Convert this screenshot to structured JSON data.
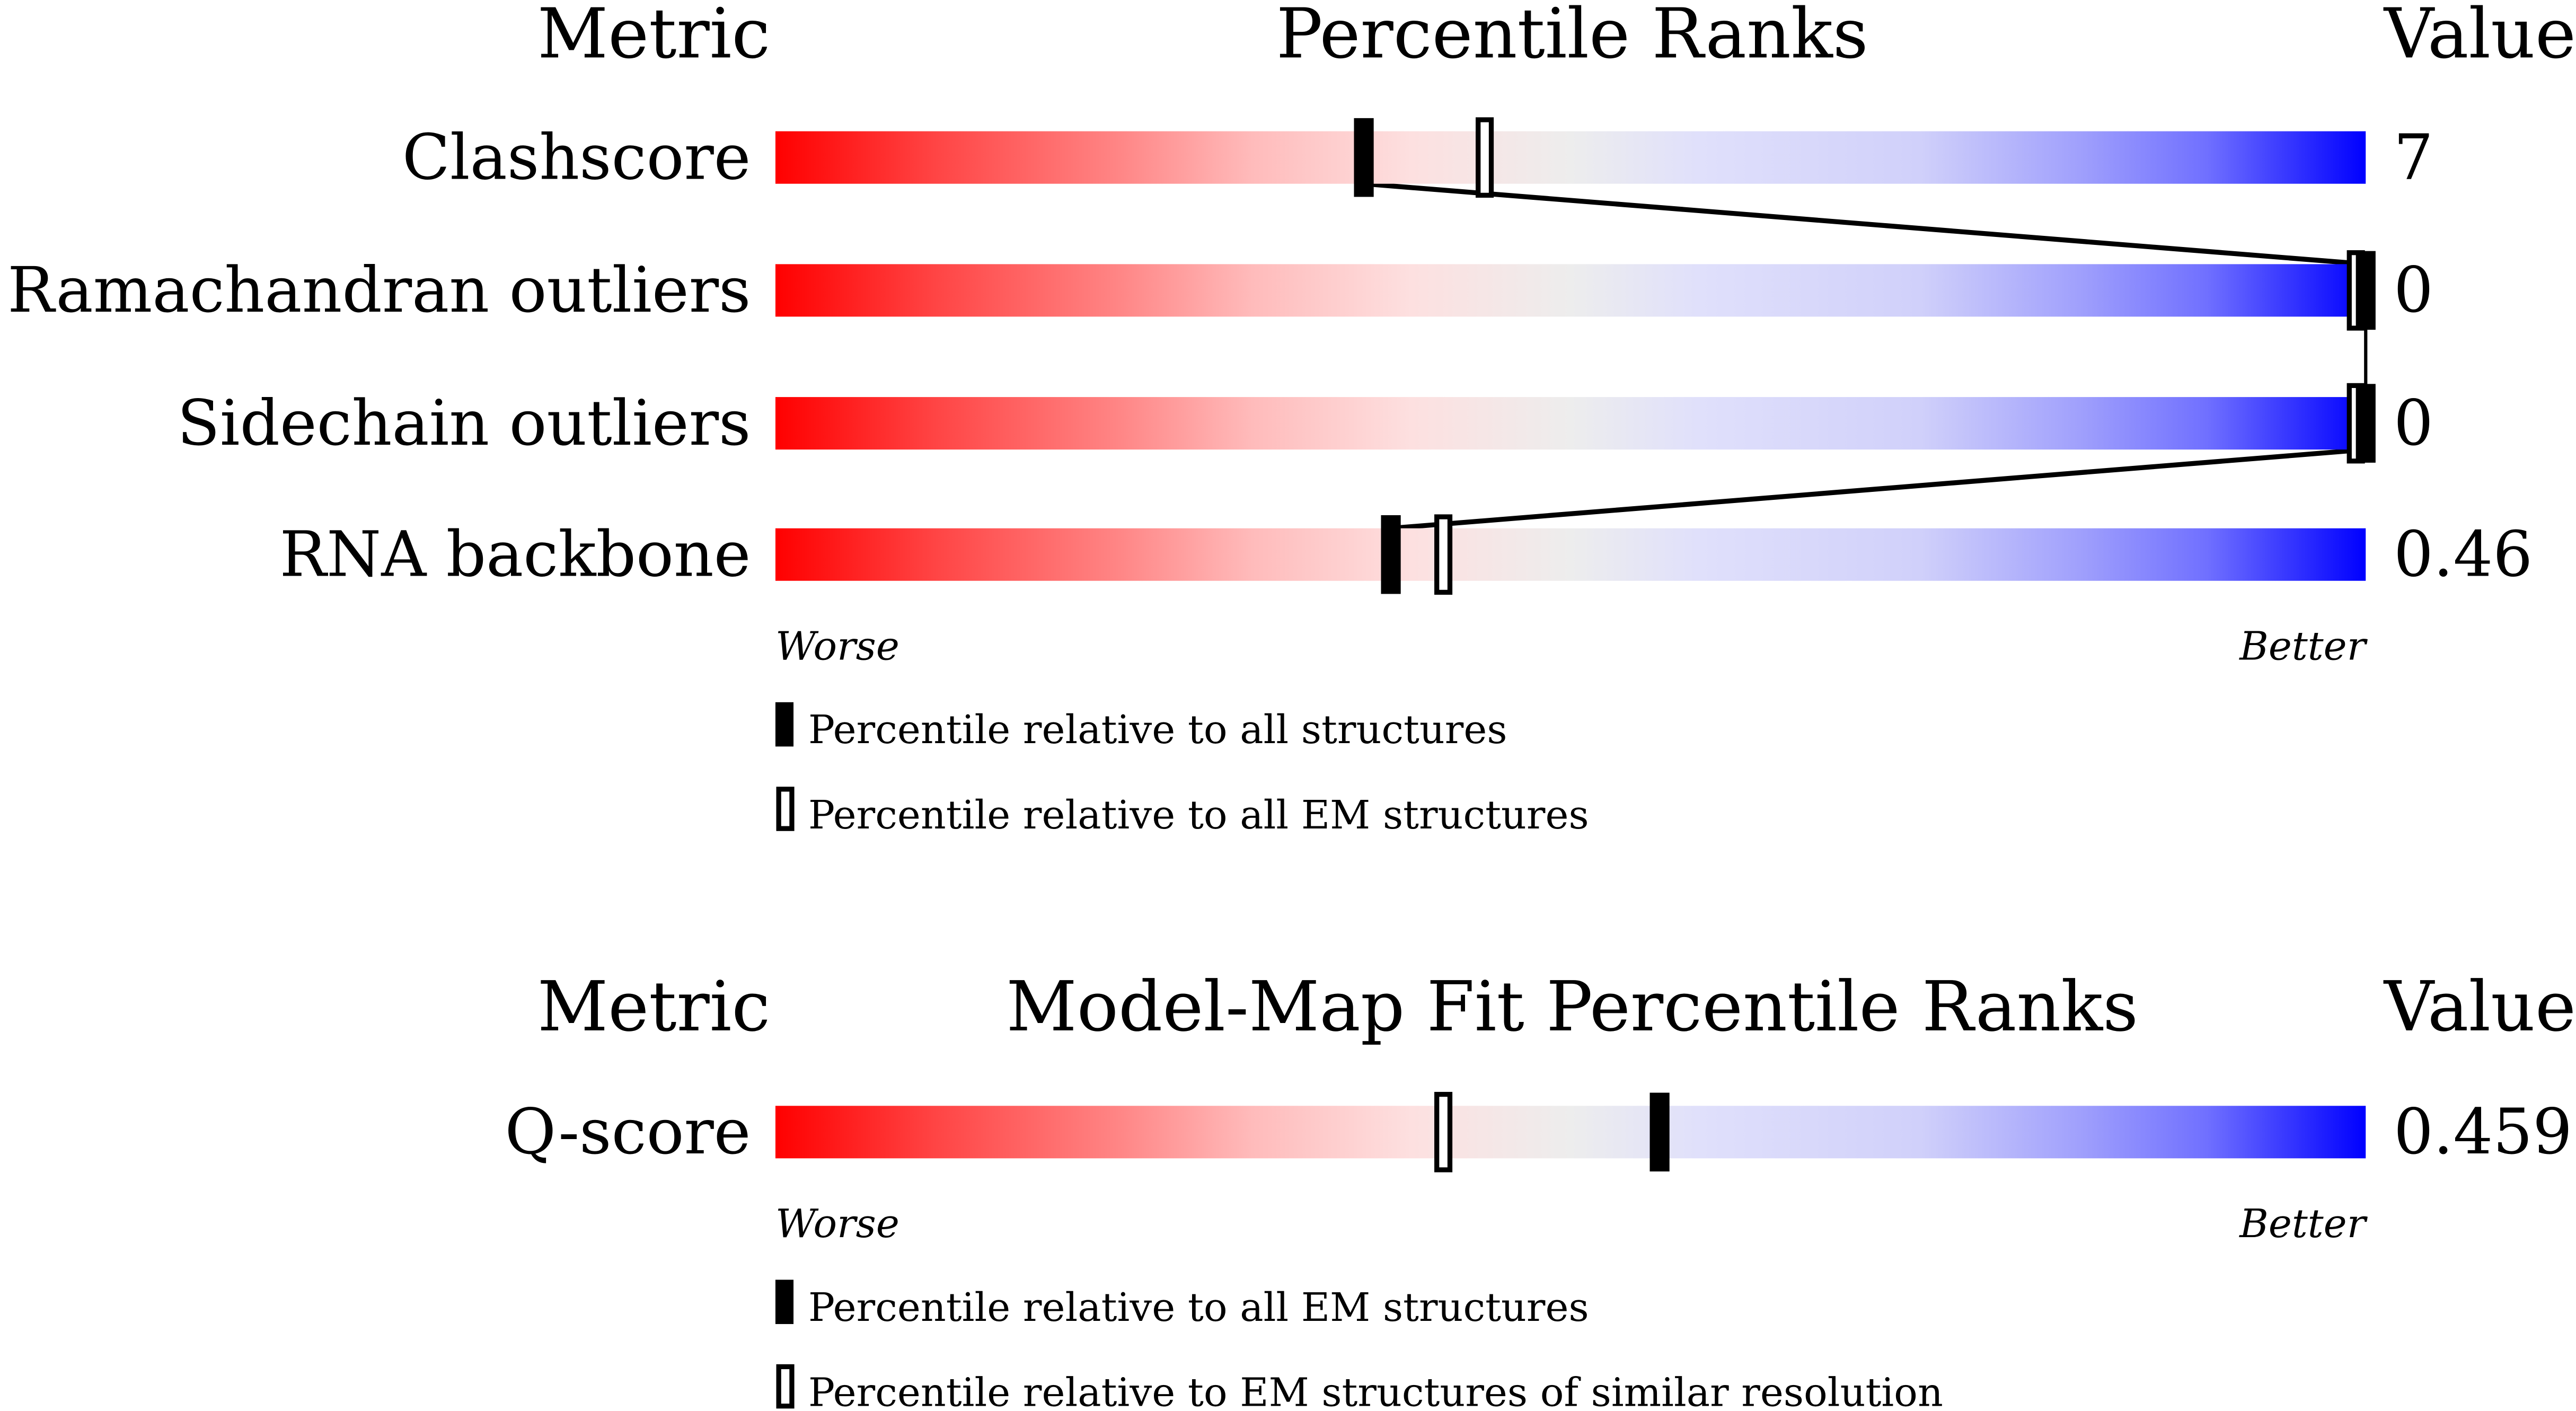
{
  "chart_data": [
    {
      "type": "bar",
      "headers": {
        "metric": "Metric",
        "title": "Percentile Ranks",
        "value": "Value"
      },
      "xlim": [
        0,
        100
      ],
      "rows": [
        {
          "metric": "Clashscore",
          "value": "7",
          "percentile_all": 37,
          "percentile_em": 44.6
        },
        {
          "metric": "Ramachandran outliers",
          "value": "0",
          "percentile_all": 100,
          "percentile_em": 100
        },
        {
          "metric": "Sidechain outliers",
          "value": "0",
          "percentile_all": 100,
          "percentile_em": 100
        },
        {
          "metric": "RNA backbone",
          "value": "0.46",
          "percentile_all": 38.7,
          "percentile_em": 42
        }
      ],
      "axis_left": "Worse",
      "axis_right": "Better",
      "legend": [
        "Percentile relative to all structures",
        "Percentile relative to all EM structures"
      ]
    },
    {
      "type": "bar",
      "headers": {
        "metric": "Metric",
        "title": "Model-Map Fit Percentile Ranks",
        "value": "Value"
      },
      "xlim": [
        0,
        100
      ],
      "rows": [
        {
          "metric": "Q-score",
          "value": "0.459",
          "percentile_all": 55.6,
          "percentile_em": 42
        }
      ],
      "axis_left": "Worse",
      "axis_right": "Better",
      "legend": [
        "Percentile relative to all EM structures",
        "Percentile relative to EM structures of similar resolution"
      ]
    }
  ],
  "colors": {
    "worse": "#ff0000",
    "middle": "#ebebeb",
    "better": "#0000ff",
    "marker": "#000000"
  }
}
